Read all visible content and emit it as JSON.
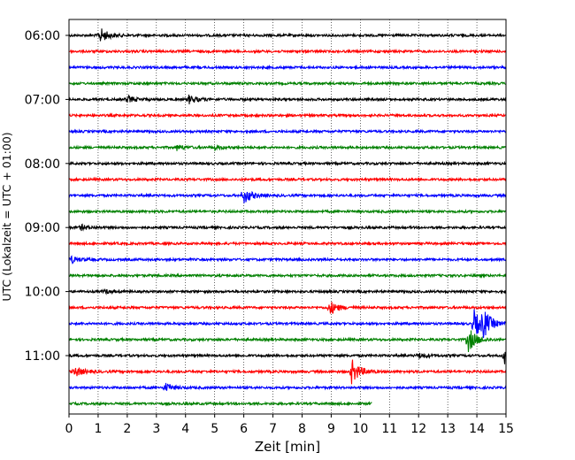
{
  "chart_data": {
    "type": "line",
    "xlabel": "Zeit  [min]",
    "ylabel": "UTC (Lokalzeit = UTC + 01:00)",
    "xlim": [
      0,
      15
    ],
    "x_ticks": [
      "0",
      "1",
      "2",
      "3",
      "4",
      "5",
      "6",
      "7",
      "8",
      "9",
      "10",
      "11",
      "12",
      "13",
      "14",
      "15"
    ],
    "y_ticks": [
      "06:00",
      "07:00",
      "08:00",
      "09:00",
      "10:00",
      "11:00"
    ],
    "grid": "vertical-dotted",
    "trace_colors": [
      "#000000",
      "#ff0000",
      "#0000ff",
      "#008000"
    ],
    "traces": [
      {
        "label": "06:00",
        "color": "#000000",
        "events": [
          [
            1.05,
            9
          ]
        ]
      },
      {
        "label": "06:15",
        "color": "#ff0000",
        "events": []
      },
      {
        "label": "06:30",
        "color": "#0000ff",
        "events": []
      },
      {
        "label": "06:45",
        "color": "#008000",
        "events": []
      },
      {
        "label": "07:00",
        "color": "#000000",
        "events": [
          [
            2.0,
            4
          ],
          [
            4.1,
            5
          ]
        ]
      },
      {
        "label": "07:15",
        "color": "#ff0000",
        "events": []
      },
      {
        "label": "07:30",
        "color": "#0000ff",
        "events": []
      },
      {
        "label": "07:45",
        "color": "#008000",
        "events": [
          [
            3.7,
            3
          ],
          [
            5.0,
            2
          ]
        ]
      },
      {
        "label": "08:00",
        "color": "#000000",
        "events": []
      },
      {
        "label": "08:15",
        "color": "#ff0000",
        "events": []
      },
      {
        "label": "08:30",
        "color": "#0000ff",
        "events": [
          [
            6.0,
            9
          ]
        ]
      },
      {
        "label": "08:45",
        "color": "#008000",
        "events": []
      },
      {
        "label": "09:00",
        "color": "#000000",
        "events": [
          [
            0.4,
            3
          ]
        ]
      },
      {
        "label": "09:15",
        "color": "#ff0000",
        "events": []
      },
      {
        "label": "09:30",
        "color": "#0000ff",
        "events": [
          [
            0.05,
            4
          ]
        ]
      },
      {
        "label": "09:45",
        "color": "#008000",
        "events": []
      },
      {
        "label": "10:00",
        "color": "#000000",
        "events": [
          [
            1.2,
            2
          ]
        ]
      },
      {
        "label": "10:15",
        "color": "#ff0000",
        "events": [
          [
            8.95,
            8
          ]
        ]
      },
      {
        "label": "10:30",
        "color": "#0000ff",
        "events": [
          [
            13.9,
            16
          ],
          [
            14.2,
            14
          ]
        ]
      },
      {
        "label": "10:45",
        "color": "#008000",
        "events": [
          [
            13.7,
            14
          ]
        ]
      },
      {
        "label": "11:00",
        "color": "#000000",
        "events": [
          [
            12.0,
            3
          ],
          [
            14.95,
            10
          ]
        ]
      },
      {
        "label": "11:15",
        "color": "#ff0000",
        "events": [
          [
            0.2,
            6
          ],
          [
            9.7,
            14
          ]
        ]
      },
      {
        "label": "11:30",
        "color": "#0000ff",
        "events": [
          [
            3.3,
            5
          ]
        ]
      },
      {
        "label": "11:45",
        "color": "#008000",
        "events": [],
        "end_x": 10.4
      }
    ]
  }
}
